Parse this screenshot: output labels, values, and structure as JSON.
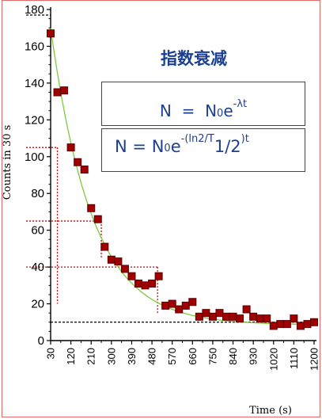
{
  "title": "指数衰减",
  "equations": {
    "eq1": {
      "n": "N",
      "eq": "=",
      "n0": "N",
      "zero": "0",
      "e": "e",
      "exp": "-λt"
    },
    "eq2": {
      "n": "N",
      "eq": "=",
      "n0": "N",
      "zero": "0",
      "e": "e",
      "exp_a": "-(ln2/T",
      "half": "1/2",
      "exp_b": ")t"
    }
  },
  "colors": {
    "marker": "#a00000",
    "marker_edge": "#5a0000",
    "fit": "#7acb3a",
    "guide": "#d80000",
    "axis": "#000000"
  },
  "chart_data": {
    "type": "scatter",
    "title": "",
    "xlabel": "Time (s)",
    "ylabel": "Counts in 30 s",
    "xlim": [
      30,
      1200
    ],
    "ylim": [
      0,
      180
    ],
    "x_ticks": [
      "30",
      "120",
      "210",
      "300",
      "390",
      "480",
      "570",
      "660",
      "750",
      "840",
      "930",
      "1020",
      "1110",
      "1200"
    ],
    "y_ticks": [
      "0",
      "20",
      "40",
      "60",
      "80",
      "100",
      "120",
      "140",
      "160",
      "180"
    ],
    "grid": false,
    "legend": "none",
    "series": [
      {
        "x": [
          30,
          60,
          90,
          120,
          150,
          180,
          210,
          240,
          270,
          300,
          330,
          360,
          390,
          420,
          450,
          480,
          510,
          540,
          570,
          600,
          630,
          660,
          690,
          720,
          750,
          780,
          810,
          840,
          870,
          900,
          930,
          960,
          990,
          1020,
          1050,
          1080,
          1110,
          1140,
          1170,
          1200
        ],
        "y": [
          167,
          135,
          136,
          105,
          97,
          93,
          72,
          66,
          51,
          44,
          43,
          39,
          35,
          31,
          30,
          31,
          35,
          19,
          20,
          17,
          19,
          21,
          13,
          15,
          13,
          15,
          13,
          13,
          12,
          17,
          13,
          12,
          12,
          8,
          9,
          9,
          12,
          8,
          9,
          10
        ]
      }
    ],
    "fit_curve": {
      "N0": 170,
      "lambda": 0.00545,
      "floor": 8.5
    },
    "guides": [
      {
        "level": 105,
        "x": 60
      },
      {
        "level": 65,
        "x": 255
      },
      {
        "level": 40,
        "x": 505
      }
    ],
    "background_level": 10
  }
}
